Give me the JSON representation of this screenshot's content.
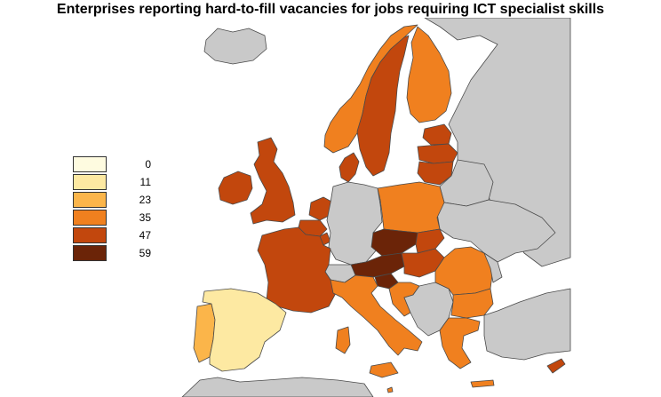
{
  "title": "Enterprises reporting hard-to-fill vacancies for jobs requiring ICT specialist skills",
  "legend": {
    "items": [
      {
        "label": "0",
        "color": "#fefbe0"
      },
      {
        "label": "11",
        "color": "#fde9a2"
      },
      {
        "label": "23",
        "color": "#fbb54a"
      },
      {
        "label": "35",
        "color": "#f0801f"
      },
      {
        "label": "47",
        "color": "#c2470d"
      },
      {
        "label": "59",
        "color": "#6b2408"
      }
    ]
  },
  "colors": {
    "no_data": "#c9c9c9",
    "border": "#4a4a4a"
  },
  "regions": [
    {
      "name": "Iceland",
      "class": "no_data"
    },
    {
      "name": "Norway",
      "class": "35"
    },
    {
      "name": "Sweden",
      "class": "47"
    },
    {
      "name": "Finland",
      "class": "35"
    },
    {
      "name": "Russia",
      "class": "no_data"
    },
    {
      "name": "Estonia",
      "class": "47"
    },
    {
      "name": "Latvia",
      "class": "47"
    },
    {
      "name": "Lithuania",
      "class": "47"
    },
    {
      "name": "Belarus",
      "class": "no_data"
    },
    {
      "name": "Ukraine",
      "class": "no_data"
    },
    {
      "name": "Ireland",
      "class": "47"
    },
    {
      "name": "United Kingdom",
      "class": "47"
    },
    {
      "name": "Denmark",
      "class": "47"
    },
    {
      "name": "Netherlands",
      "class": "47"
    },
    {
      "name": "Belgium",
      "class": "47"
    },
    {
      "name": "Luxembourg",
      "class": "47"
    },
    {
      "name": "France",
      "class": "47"
    },
    {
      "name": "Germany",
      "class": "no_data"
    },
    {
      "name": "Poland",
      "class": "35"
    },
    {
      "name": "Czechia",
      "class": "59"
    },
    {
      "name": "Slovakia",
      "class": "47"
    },
    {
      "name": "Austria",
      "class": "59"
    },
    {
      "name": "Hungary",
      "class": "47"
    },
    {
      "name": "Slovenia",
      "class": "59"
    },
    {
      "name": "Switzerland",
      "class": "no_data"
    },
    {
      "name": "Italy",
      "class": "35"
    },
    {
      "name": "Croatia",
      "class": "35"
    },
    {
      "name": "Western Balkans",
      "class": "no_data"
    },
    {
      "name": "Romania",
      "class": "35"
    },
    {
      "name": "Moldova",
      "class": "no_data"
    },
    {
      "name": "Bulgaria",
      "class": "35"
    },
    {
      "name": "Greece",
      "class": "35"
    },
    {
      "name": "Turkey",
      "class": "no_data"
    },
    {
      "name": "Cyprus",
      "class": "47"
    },
    {
      "name": "Malta",
      "class": "35"
    },
    {
      "name": "Portugal",
      "class": "23"
    },
    {
      "name": "Spain",
      "class": "11"
    },
    {
      "name": "North Africa",
      "class": "no_data"
    }
  ]
}
